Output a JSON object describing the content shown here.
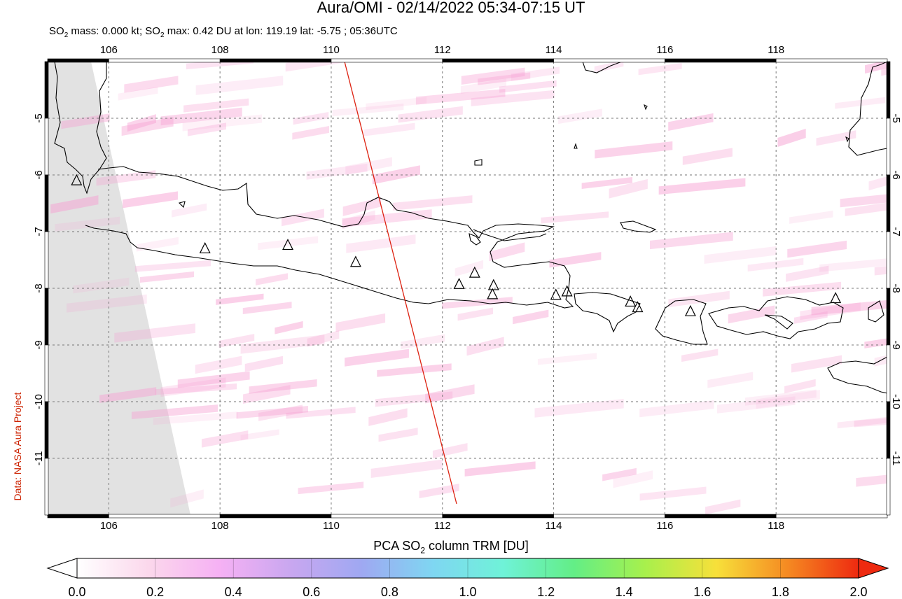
{
  "header": {
    "title": "Aura/OMI - 02/14/2022 05:34-07:15 UT",
    "subtitle_prefix": "SO",
    "subtitle_sub": "2",
    "subtitle_mid": " mass: 0.000 kt; SO",
    "subtitle_sub2": "2",
    "subtitle_rest": " max: 0.42 DU at lon: 119.19 lat: -5.75 ; 05:36UTC"
  },
  "credit": "Data: NASA Aura Project",
  "map": {
    "lon_range": [
      104.9,
      120.0
    ],
    "lat_range": [
      -12.0,
      -4.0
    ],
    "lon_ticks": [
      "106",
      "108",
      "110",
      "112",
      "114",
      "116",
      "118"
    ],
    "lon_tick_values": [
      106,
      108,
      110,
      112,
      114,
      116,
      118
    ],
    "lat_ticks": [
      "-5",
      "-6",
      "-7",
      "-8",
      "-9",
      "-10",
      "-11"
    ],
    "lat_tick_values": [
      -5,
      -6,
      -7,
      -8,
      -9,
      -10,
      -11
    ],
    "grid": "dashed",
    "orbit_track_color": "#dd2211",
    "volcanoes": [
      {
        "lon": 105.42,
        "lat": -6.1
      },
      {
        "lon": 107.73,
        "lat": -7.3
      },
      {
        "lon": 109.22,
        "lat": -7.24
      },
      {
        "lon": 110.44,
        "lat": -7.54
      },
      {
        "lon": 112.3,
        "lat": -7.93
      },
      {
        "lon": 112.58,
        "lat": -7.73
      },
      {
        "lon": 112.92,
        "lat": -7.95
      },
      {
        "lon": 112.9,
        "lat": -8.11
      },
      {
        "lon": 114.04,
        "lat": -8.12
      },
      {
        "lon": 114.24,
        "lat": -8.06
      },
      {
        "lon": 115.38,
        "lat": -8.24
      },
      {
        "lon": 115.51,
        "lat": -8.34
      },
      {
        "lon": 116.46,
        "lat": -8.41
      },
      {
        "lon": 119.07,
        "lat": -8.18
      }
    ]
  },
  "colorbar": {
    "title_prefix": "PCA SO",
    "title_sub": "2",
    "title_rest": " column TRM [DU]",
    "tick_labels": [
      "0.0",
      "0.2",
      "0.4",
      "0.6",
      "0.8",
      "1.0",
      "1.2",
      "1.4",
      "1.6",
      "1.8",
      "2.0"
    ],
    "tick_values": [
      0.0,
      0.2,
      0.4,
      0.6,
      0.8,
      1.0,
      1.2,
      1.4,
      1.6,
      1.8,
      2.0
    ],
    "colors": [
      "#ffffff",
      "#fbd8ec",
      "#f6b1f4",
      "#c9a7f0",
      "#9fa8f2",
      "#7fd6f2",
      "#6ff2d8",
      "#63ee86",
      "#a8f04c",
      "#f7e03a",
      "#f58a22",
      "#ee2a10"
    ]
  }
}
